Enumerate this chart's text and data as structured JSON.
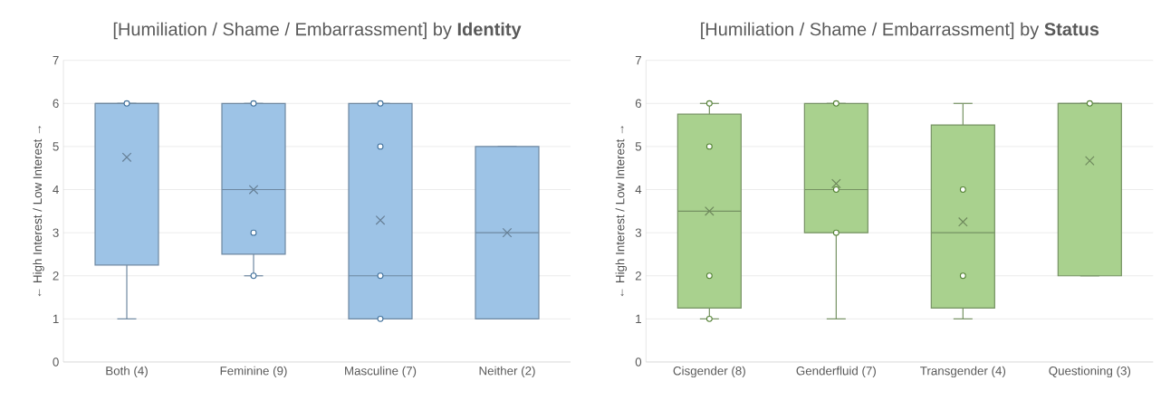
{
  "chart_data": [
    {
      "type": "box",
      "title": "[Humiliation / Shame / Embarrassment] by **Identity**",
      "ylabel": "← High Interest / Low Interest →",
      "categories": [
        "Both (4)",
        "Feminine (9)",
        "Masculine (7)",
        "Neither (2)"
      ],
      "ylim": [
        0,
        7
      ],
      "yticks": [
        0,
        1,
        2,
        3,
        4,
        5,
        6,
        7
      ],
      "grid": "y",
      "series": [
        {
          "color": "#9dc3e6",
          "boxes": [
            {
              "low": 1,
              "q1": 2.25,
              "median": 6,
              "q3": 6,
              "high": 6,
              "mean": 4.75
            },
            {
              "low": 2,
              "q1": 2.5,
              "median": 4,
              "q3": 6,
              "high": 6,
              "mean": 4
            },
            {
              "low": 1,
              "q1": 1,
              "median": 2,
              "q3": 6,
              "high": 6,
              "mean": 3.29
            },
            {
              "low": 1,
              "q1": 1,
              "median": 3,
              "q3": 5,
              "high": 5,
              "mean": 3
            }
          ]
        },
        {
          "type": "scatter",
          "color": "#41719c",
          "marker": "circle",
          "x": [
            "Both (4)",
            "Feminine (9)",
            "Feminine (9)",
            "Feminine (9)",
            "Masculine (7)",
            "Masculine (7)",
            "Masculine (7)",
            "Masculine (7)"
          ],
          "values": [
            6,
            6,
            3,
            2,
            6,
            5,
            2,
            1
          ]
        }
      ]
    },
    {
      "type": "box",
      "title": "[Humiliation / Shame / Embarrassment] by **Status**",
      "ylabel": "← High Interest / Low Interest →",
      "categories": [
        "Cisgender (8)",
        "Genderfluid (7)",
        "Transgender (4)",
        "Questioning (3)"
      ],
      "ylim": [
        0,
        7
      ],
      "yticks": [
        0,
        1,
        2,
        3,
        4,
        5,
        6,
        7
      ],
      "grid": "y",
      "series": [
        {
          "color": "#a9d18e",
          "boxes": [
            {
              "low": 1,
              "q1": 1.25,
              "median": 3.5,
              "q3": 5.75,
              "high": 6,
              "mean": 3.5
            },
            {
              "low": 1,
              "q1": 3,
              "median": 4,
              "q3": 6,
              "high": 6,
              "mean": 4.14
            },
            {
              "low": 1,
              "q1": 1.25,
              "median": 3,
              "q3": 5.5,
              "high": 6,
              "mean": 3.25
            },
            {
              "low": 2,
              "q1": 2,
              "median": 6,
              "q3": 6,
              "high": 6,
              "mean": 4.67
            }
          ]
        },
        {
          "type": "scatter",
          "color": "#548235",
          "marker": "circle",
          "x": [
            "Cisgender (8)",
            "Cisgender (8)",
            "Cisgender (8)",
            "Cisgender (8)",
            "Genderfluid (7)",
            "Genderfluid (7)",
            "Genderfluid (7)",
            "Transgender (4)",
            "Transgender (4)",
            "Questioning (3)"
          ],
          "values": [
            6,
            5,
            2,
            1,
            6,
            4,
            3,
            4,
            2,
            6
          ]
        }
      ]
    }
  ]
}
